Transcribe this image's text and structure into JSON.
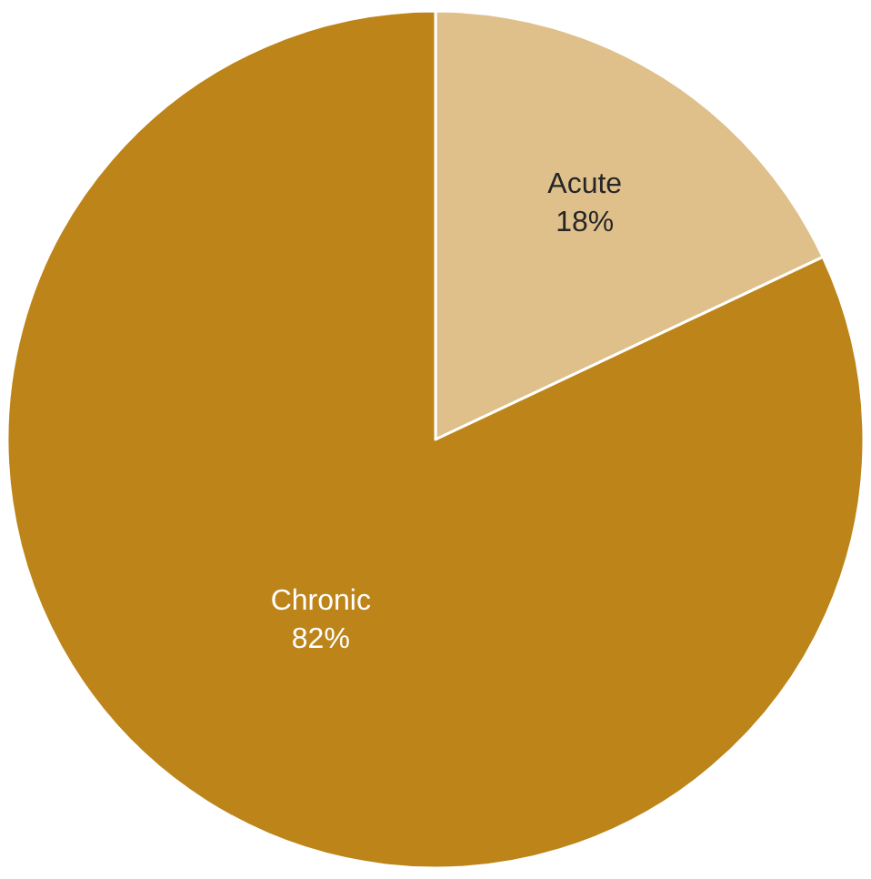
{
  "chart_data": {
    "type": "pie",
    "categories": [
      "Acute",
      "Chronic"
    ],
    "values": [
      18,
      82
    ],
    "value_labels": [
      "18%",
      "82%"
    ],
    "colors": [
      "#dfc08b",
      "#bd8419"
    ],
    "legend": false
  }
}
